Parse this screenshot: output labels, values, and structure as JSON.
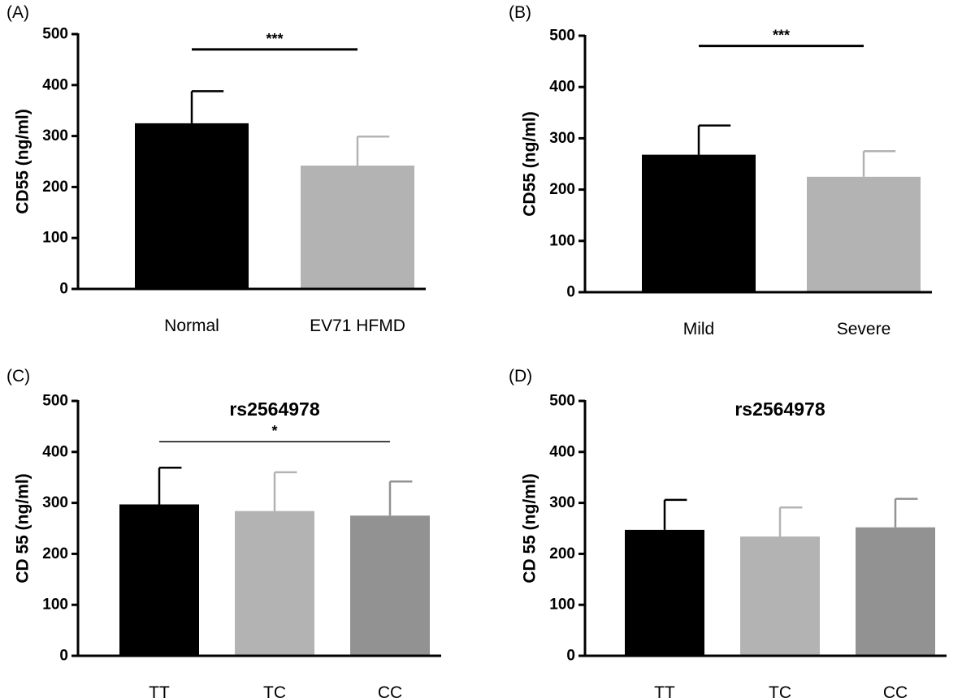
{
  "chart_data": [
    {
      "type": "bar",
      "panel_label": "(A)",
      "title": "",
      "xlabel": "",
      "ylabel": "CD55 (ng/ml)",
      "ylim": [
        0,
        500
      ],
      "yticks": [
        0,
        100,
        200,
        300,
        400,
        500
      ],
      "categories": [
        "Normal",
        "EV71 HFMD"
      ],
      "values": [
        325,
        242
      ],
      "errors": [
        63,
        57
      ],
      "colors": [
        "#000000",
        "#b3b3b3"
      ],
      "significance": {
        "from": 0,
        "to": 1,
        "label": "***",
        "y": 470
      }
    },
    {
      "type": "bar",
      "panel_label": "(B)",
      "title": "",
      "xlabel": "",
      "ylabel": "CD55 (ng/ml)",
      "ylim": [
        0,
        500
      ],
      "yticks": [
        0,
        100,
        200,
        300,
        400,
        500
      ],
      "categories": [
        "Mild",
        "Severe"
      ],
      "values": [
        268,
        225
      ],
      "errors": [
        57,
        50
      ],
      "colors": [
        "#000000",
        "#b3b3b3"
      ],
      "significance": {
        "from": 0,
        "to": 1,
        "label": "***",
        "y": 480
      }
    },
    {
      "type": "bar",
      "panel_label": "(C)",
      "title": "rs2564978",
      "xlabel": "",
      "ylabel": "CD 55 (ng/ml)",
      "ylim": [
        0,
        500
      ],
      "yticks": [
        0,
        100,
        200,
        300,
        400,
        500
      ],
      "categories": [
        "TT",
        "TC",
        "CC"
      ],
      "values": [
        297,
        284,
        275
      ],
      "errors": [
        72,
        76,
        67
      ],
      "colors": [
        "#000000",
        "#b3b3b3",
        "#929292"
      ],
      "significance": {
        "from": 0,
        "to": 2,
        "label": "*",
        "y": 420
      }
    },
    {
      "type": "bar",
      "panel_label": "(D)",
      "title": "rs2564978",
      "xlabel": "",
      "ylabel": "CD 55 (ng/ml)",
      "ylim": [
        0,
        500
      ],
      "yticks": [
        0,
        100,
        200,
        300,
        400,
        500
      ],
      "categories": [
        "TT",
        "TC",
        "CC"
      ],
      "values": [
        247,
        234,
        252
      ],
      "errors": [
        59,
        57,
        56
      ],
      "colors": [
        "#000000",
        "#b3b3b3",
        "#929292"
      ]
    }
  ]
}
